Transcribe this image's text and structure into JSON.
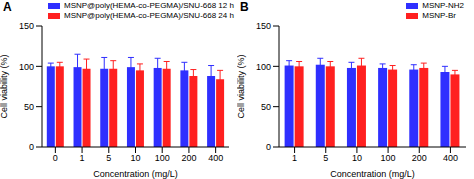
{
  "chart_data": [
    {
      "type": "bar",
      "title": "A",
      "x_label": "Concentration (mg/L)",
      "y_label": "Cell viability (%)",
      "categories": [
        "0",
        "1",
        "5",
        "10",
        "100",
        "200",
        "400"
      ],
      "series": [
        {
          "name": "MSNP@poly(HEMA-co-PEGMA)/SNU-668  12 h",
          "color": "#2f2fff",
          "values": [
            100,
            99,
            97,
            99,
            98,
            95,
            88
          ],
          "errors": [
            4,
            16,
            14,
            12,
            12,
            10,
            13
          ]
        },
        {
          "name": "MSNP@poly(HEMA-co-PEGMA)/SNU-668  24 h",
          "color": "#ff2020",
          "values": [
            100,
            97,
            97,
            95,
            97,
            88,
            84
          ],
          "errors": [
            5,
            12,
            10,
            8,
            9,
            8,
            11
          ]
        }
      ],
      "ylim": [
        0,
        150
      ],
      "yticks": [
        0,
        50,
        100,
        150
      ],
      "grid": false,
      "legend": "upper left"
    },
    {
      "type": "bar",
      "title": "B",
      "x_label": "Concentration (mg/L)",
      "y_label": "Cell viability (%)",
      "categories": [
        "1",
        "5",
        "10",
        "100",
        "200",
        "400"
      ],
      "series": [
        {
          "name": "MSNP-NH2",
          "color": "#2f2fff",
          "values": [
            101,
            102,
            98,
            98,
            96,
            93
          ],
          "errors": [
            6,
            8,
            7,
            5,
            6,
            7
          ]
        },
        {
          "name": "MSNP-Br",
          "color": "#ff2020",
          "values": [
            100,
            100,
            101,
            96,
            98,
            90
          ],
          "errors": [
            6,
            6,
            9,
            5,
            6,
            5
          ]
        }
      ],
      "ylim": [
        0,
        150
      ],
      "yticks": [
        0,
        50,
        100,
        150
      ],
      "grid": false,
      "legend": "upper right"
    }
  ]
}
